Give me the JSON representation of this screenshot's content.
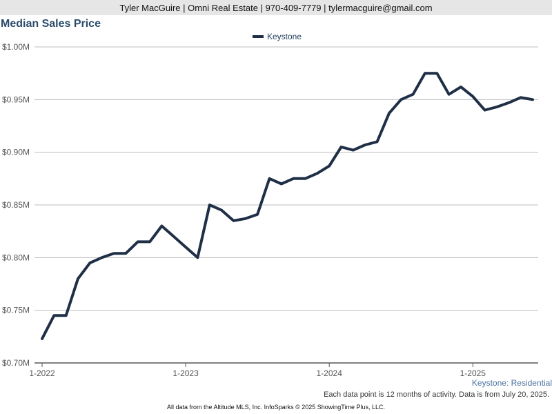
{
  "header": {
    "contact": "Tyler MacGuire | Omni Real Estate | 970-409-7779 | tylermacguire@gmail.com"
  },
  "footer": {
    "series_label": "Keystone: Residential",
    "note": "Each data point is 12 months of activity. Data is from July 20, 2025.",
    "credit": "All data from the Altitude MLS, Inc. InfoSparks © 2025 ShowingTime Plus, LLC."
  },
  "colors": {
    "line": "#1f2f46",
    "grid": "#bdbdbd",
    "axis": "#555555"
  },
  "chart_data": {
    "type": "line",
    "title": "Median Sales Price",
    "xlabel": "",
    "ylabel": "",
    "legend": "top-center",
    "grid": true,
    "ylim": [
      0.7,
      1.0
    ],
    "y_ticks": [
      "$0.70M",
      "$0.75M",
      "$0.80M",
      "$0.85M",
      "$0.90M",
      "$0.95M",
      "$1.00M"
    ],
    "x_ticks": [
      "1-2022",
      "1-2023",
      "1-2024",
      "1-2025"
    ],
    "x": [
      "2022-01",
      "2022-02",
      "2022-03",
      "2022-04",
      "2022-05",
      "2022-06",
      "2022-07",
      "2022-08",
      "2022-09",
      "2022-10",
      "2022-11",
      "2022-12",
      "2023-01",
      "2023-02",
      "2023-03",
      "2023-04",
      "2023-05",
      "2023-06",
      "2023-07",
      "2023-08",
      "2023-09",
      "2023-10",
      "2023-11",
      "2023-12",
      "2024-01",
      "2024-02",
      "2024-03",
      "2024-04",
      "2024-05",
      "2024-06",
      "2024-07",
      "2024-08",
      "2024-09",
      "2024-10",
      "2024-11",
      "2024-12",
      "2025-01",
      "2025-02",
      "2025-03",
      "2025-04",
      "2025-05",
      "2025-06"
    ],
    "series": [
      {
        "name": "Keystone",
        "values": [
          0.723,
          0.745,
          0.745,
          0.78,
          0.795,
          0.8,
          0.804,
          0.804,
          0.815,
          0.815,
          0.83,
          0.82,
          0.81,
          0.8,
          0.85,
          0.845,
          0.835,
          0.837,
          0.841,
          0.875,
          0.87,
          0.875,
          0.875,
          0.88,
          0.887,
          0.905,
          0.902,
          0.907,
          0.91,
          0.937,
          0.95,
          0.955,
          0.975,
          0.975,
          0.955,
          0.962,
          0.953,
          0.94,
          0.943,
          0.947,
          0.952,
          0.95
        ]
      }
    ]
  }
}
